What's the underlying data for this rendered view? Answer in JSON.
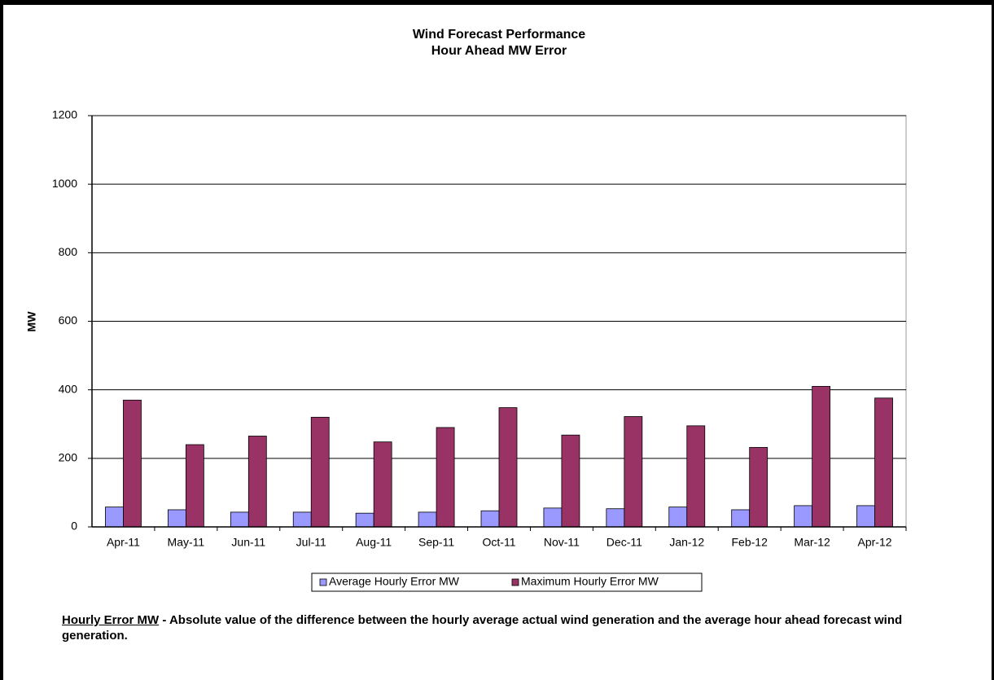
{
  "chart_data": {
    "type": "bar",
    "title": "Wind Forecast Performance",
    "subtitle": "Hour Ahead MW Error",
    "y_label": "MW",
    "categories": [
      "Apr-11",
      "May-11",
      "Jun-11",
      "Jul-11",
      "Aug-11",
      "Sep-11",
      "Oct-11",
      "Nov-11",
      "Dec-11",
      "Jan-12",
      "Feb-12",
      "Mar-12",
      "Apr-12"
    ],
    "series": [
      {
        "name": "Average Hourly Error MW",
        "color": "#9999ff",
        "values": [
          58,
          50,
          43,
          43,
          40,
          43,
          47,
          55,
          53,
          58,
          50,
          62,
          62
        ]
      },
      {
        "name": "Maximum Hourly Error MW",
        "color": "#993366",
        "values": [
          370,
          240,
          265,
          320,
          248,
          290,
          348,
          268,
          322,
          295,
          232,
          410,
          376
        ]
      }
    ],
    "ylim": [
      0,
      1200
    ],
    "yticks": [
      0,
      200,
      400,
      600,
      800,
      1000,
      1200
    ],
    "grid": true,
    "legend": "bottom",
    "note_term": "Hourly Error MW",
    "note_text": " - Absolute value of the difference between the hourly average actual wind generation and the average hour ahead forecast wind generation."
  }
}
